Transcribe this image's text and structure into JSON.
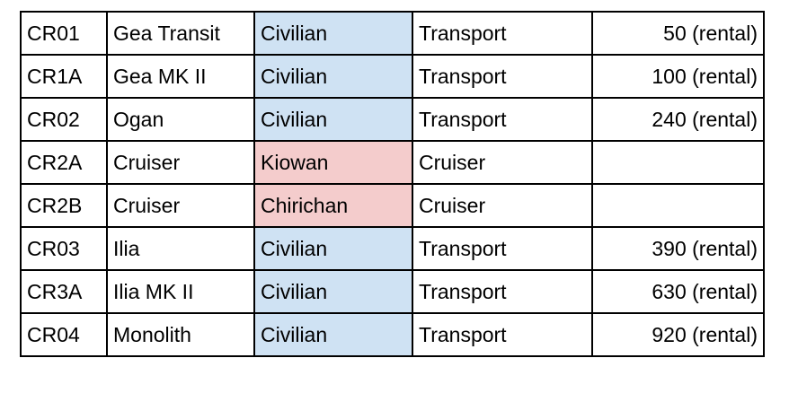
{
  "table": {
    "rows": [
      [
        "CR01",
        "Gea Transit",
        "Civilian",
        "Transport",
        "50 (rental)"
      ],
      [
        "CR1A",
        "Gea MK II",
        "Civilian",
        "Transport",
        "100 (rental)"
      ],
      [
        "CR02",
        "Ogan",
        "Civilian",
        "Transport",
        "240 (rental)"
      ],
      [
        "CR2A",
        "Cruiser",
        "Kiowan",
        "Cruiser"
      ],
      [
        "CR2B",
        "Cruiser",
        "Chirichan",
        "Cruiser"
      ],
      [
        "CR03",
        "Ilia",
        "Civilian",
        "Transport",
        "390 (rental)"
      ],
      [
        "CR3A",
        "Ilia MK II",
        "Civilian",
        "Transport",
        "630 (rental)"
      ],
      [
        "CR04",
        "Monolith",
        "Civilian",
        "Transport",
        "920 (rental)"
      ]
    ],
    "faction_colors": [
      "#cfe2f3",
      "#cfe2f3",
      "#cfe2f3",
      "#f4cccc",
      "#f4cccc",
      "#cfe2f3",
      "#cfe2f3",
      "#cfe2f3"
    ]
  }
}
